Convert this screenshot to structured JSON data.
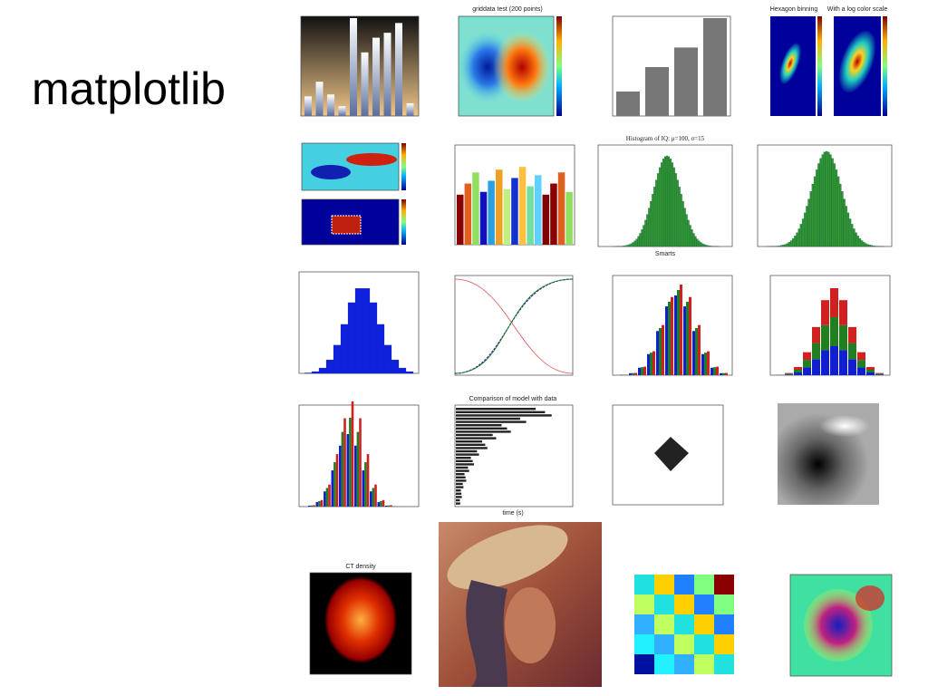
{
  "slide": {
    "title": "matplotlib",
    "thumbnail_captions": [
      "griddata test (200 points)",
      "Hexagon binning",
      "With a log color scale",
      "Histogram of IQ: μ=100, σ=15",
      "Smarts",
      "Comparison of model with data",
      "time (s)",
      "CT density"
    ]
  }
}
